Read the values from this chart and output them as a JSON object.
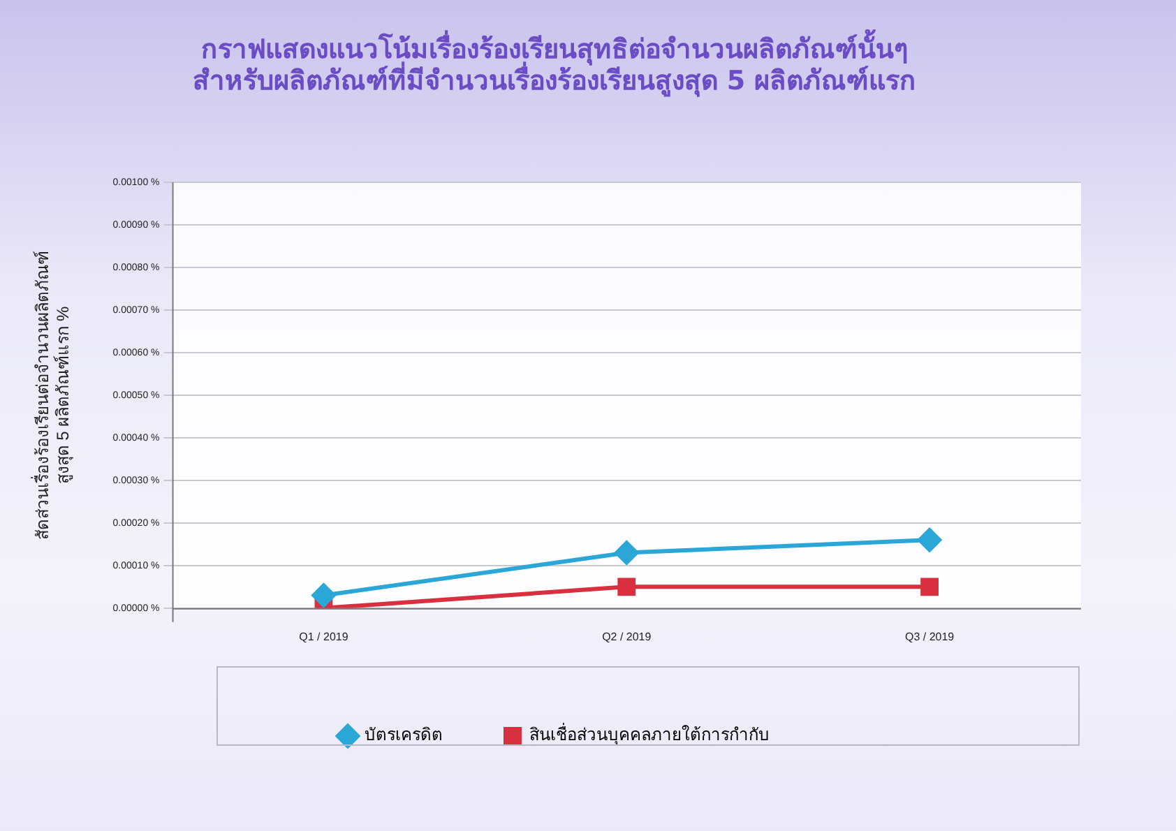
{
  "chart_data": {
    "type": "line",
    "title": [
      "กราฟแสดงแนวโน้มเรื่องร้องเรียนสุทธิต่อจำนวนผลิตภัณฑ์นั้นๆ",
      "สำหรับผลิตภัณฑ์ที่มีจำนวนเรื่องร้องเรียนสูงสุด 5 ผลิตภัณฑ์แรก"
    ],
    "ylabel": [
      "สัดส่วนเรื่องร้องเรียนต่อจำนวนผลิตภัณฑ์",
      "สูงสุด 5 ผลิตภัณฑ์แรก %"
    ],
    "categories": [
      "Q1 / 2019",
      "Q2 / 2019",
      "Q3 / 2019"
    ],
    "series": [
      {
        "name": "บัตรเครดิต",
        "color": "#2aa7d6",
        "marker": "diamond",
        "values": [
          3e-05,
          0.00013,
          0.00016
        ]
      },
      {
        "name": "สินเชื่อส่วนบุคคลภายใต้การกำกับ",
        "color": "#d8303e",
        "marker": "square",
        "values": [
          0,
          5e-05,
          5e-05
        ]
      }
    ],
    "ylim": [
      0,
      0.001
    ],
    "yticks": [
      {
        "value": 0,
        "label": "0.00000 %"
      },
      {
        "value": 0.0001,
        "label": "0.00010 %"
      },
      {
        "value": 0.0002,
        "label": "0.00020 %"
      },
      {
        "value": 0.0003,
        "label": "0.00030 %"
      },
      {
        "value": 0.0004,
        "label": "0.00040 %"
      },
      {
        "value": 0.0005,
        "label": "0.00050 %"
      },
      {
        "value": 0.0006,
        "label": "0.00060 %"
      },
      {
        "value": 0.0007,
        "label": "0.00070 %"
      },
      {
        "value": 0.0008,
        "label": "0.00080 %"
      },
      {
        "value": 0.0009,
        "label": "0.00090 %"
      },
      {
        "value": 0.001,
        "label": "0.00100 %"
      }
    ],
    "grid": "y",
    "legend": "bottom"
  }
}
